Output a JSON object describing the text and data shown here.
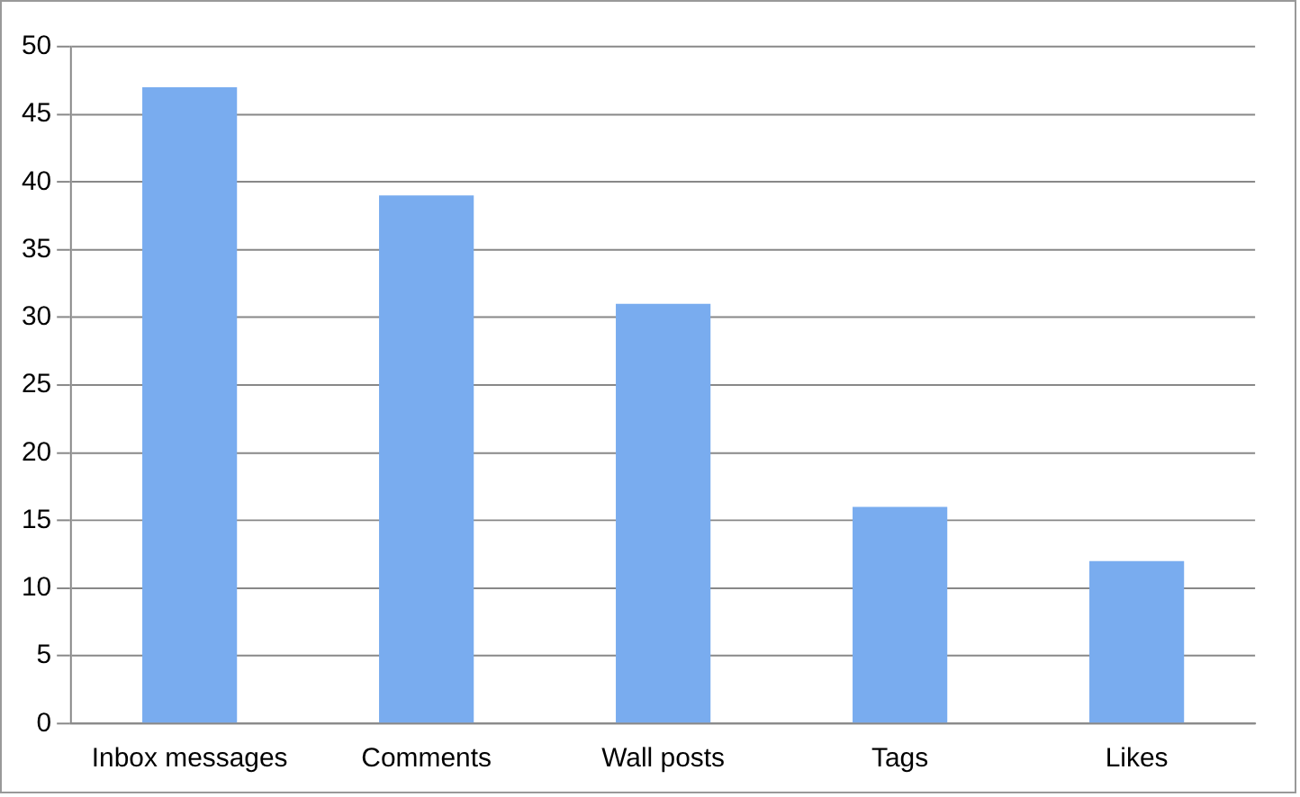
{
  "chart_data": {
    "type": "bar",
    "categories": [
      "Inbox messages",
      "Comments",
      "Wall posts",
      "Tags",
      "Likes"
    ],
    "values": [
      47,
      39,
      31,
      16,
      12
    ],
    "color": "#79acef",
    "ylim": [
      0,
      50
    ],
    "yticks": [
      0,
      5,
      10,
      15,
      20,
      25,
      30,
      35,
      40,
      45,
      50
    ],
    "grid": "y"
  }
}
